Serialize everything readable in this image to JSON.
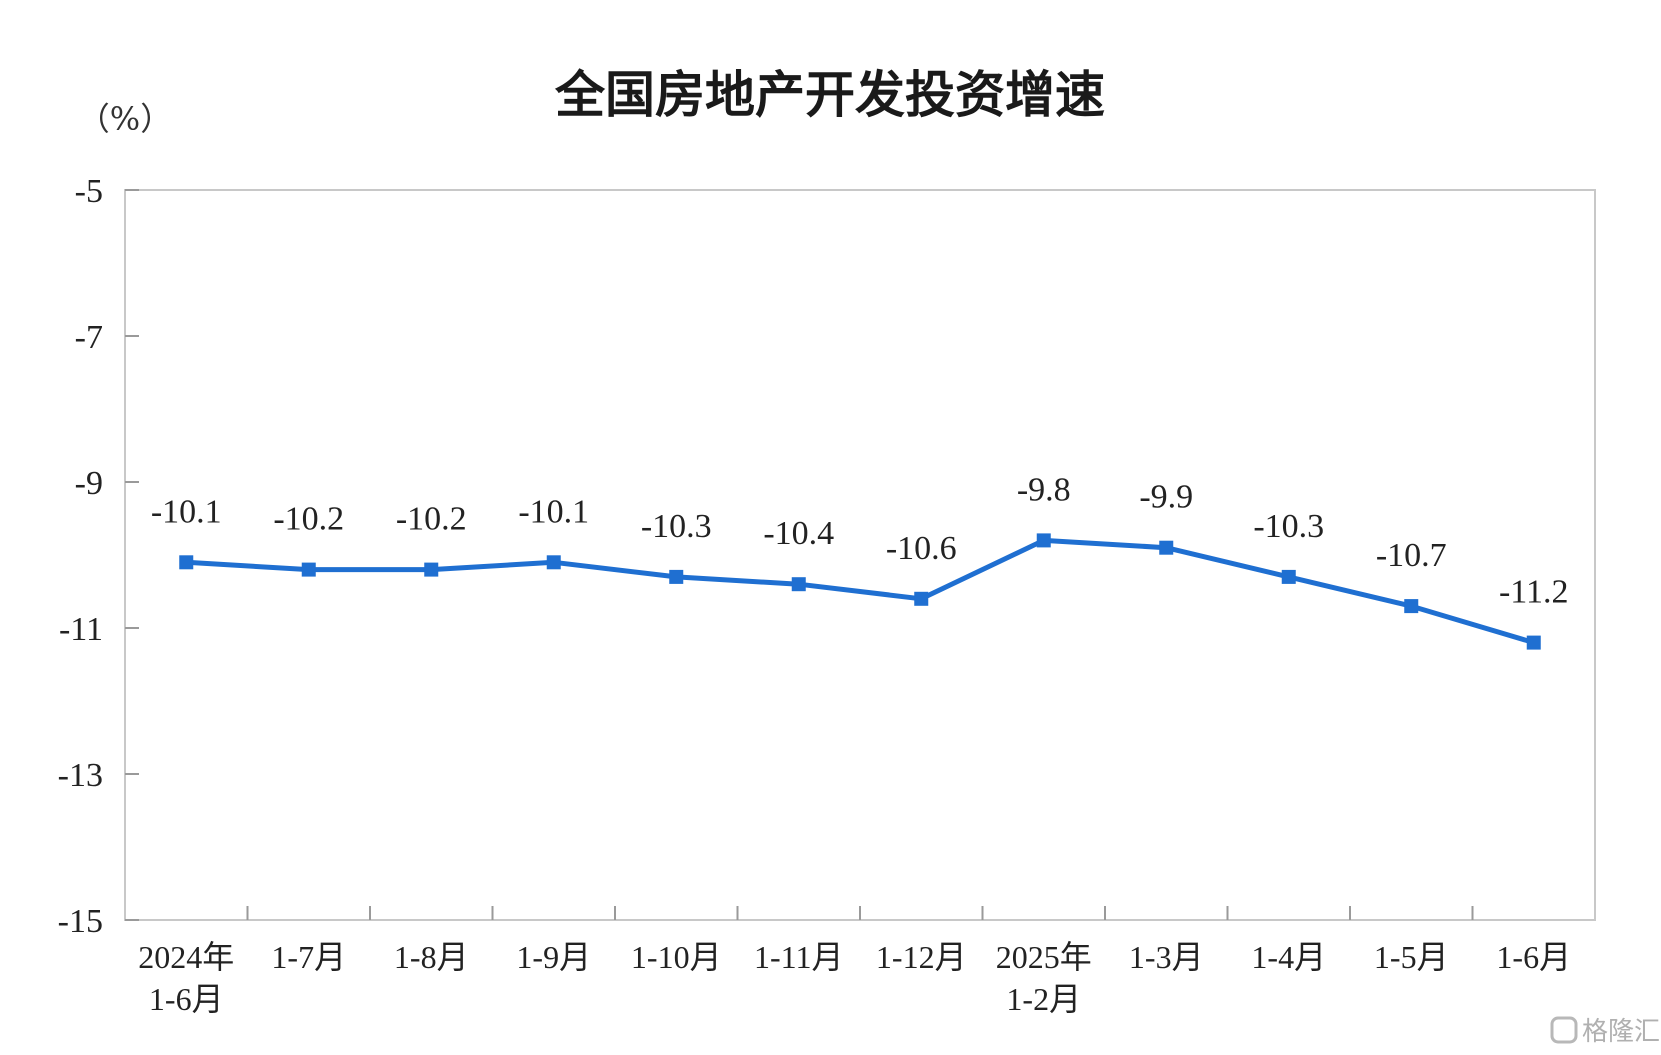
{
  "chart_data": {
    "type": "line",
    "title": "全国房地产开发投资增速",
    "unit_label": "（%）",
    "categories": [
      [
        "2024年",
        "1-6月"
      ],
      [
        "1-7月"
      ],
      [
        "1-8月"
      ],
      [
        "1-9月"
      ],
      [
        "1-10月"
      ],
      [
        "1-11月"
      ],
      [
        "1-12月"
      ],
      [
        "2025年",
        "1-2月"
      ],
      [
        "1-3月"
      ],
      [
        "1-4月"
      ],
      [
        "1-5月"
      ],
      [
        "1-6月"
      ]
    ],
    "series": [
      {
        "values": [
          -10.1,
          -10.2,
          -10.2,
          -10.1,
          -10.3,
          -10.4,
          -10.6,
          -9.8,
          -9.9,
          -10.3,
          -10.7,
          -11.2
        ],
        "labels": [
          "-10.1",
          "-10.2",
          "-10.2",
          "-10.1",
          "-10.3",
          "-10.4",
          "-10.6",
          "-9.8",
          "-9.9",
          "-10.3",
          "-10.7",
          "-11.2"
        ],
        "color": "#1f6fd1"
      }
    ],
    "ylim": [
      -15,
      -5
    ],
    "yticks": [
      -5,
      -7,
      -9,
      -11,
      -13,
      -15
    ],
    "ytick_labels": [
      "-5",
      "-7",
      "-9",
      "-11",
      "-13",
      "-15"
    ],
    "grid": false,
    "legend": "none"
  },
  "watermark": "格隆汇"
}
